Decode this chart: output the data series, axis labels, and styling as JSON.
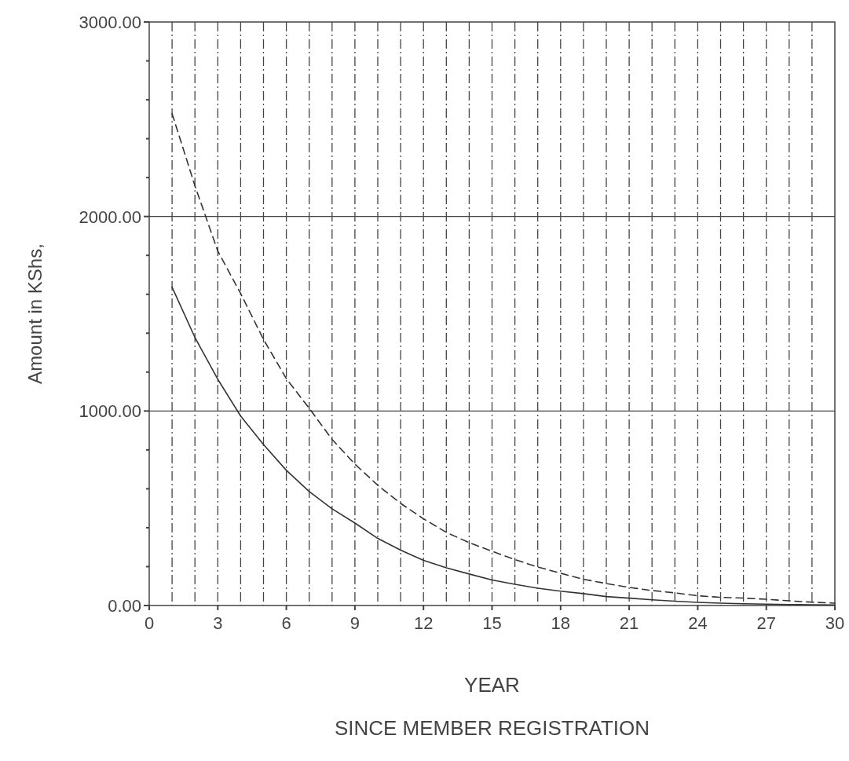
{
  "chart_data": {
    "type": "line",
    "xlabel": "YEAR",
    "ylabel": "Amount in KShs,",
    "annotations": [
      "SINCE MEMBER REGISTRATION"
    ],
    "x": [
      1,
      2,
      3,
      4,
      5,
      6,
      7,
      8,
      9,
      10,
      11,
      12,
      13,
      14,
      15,
      16,
      17,
      18,
      19,
      20,
      21,
      22,
      23,
      24,
      25,
      26,
      27,
      28,
      29,
      30
    ],
    "series": [
      {
        "color": "#333333",
        "line_style": "solid",
        "values": [
          1637,
          1378,
          1163,
          974,
          828,
          695,
          586,
          497,
          424,
          345,
          285,
          232,
          194,
          162,
          131,
          109,
          89,
          74,
          61,
          46,
          38,
          29,
          22,
          16,
          12,
          9,
          7,
          5,
          4,
          3
        ]
      },
      {
        "color": "#333333",
        "line_style": "dashed",
        "values": [
          2529,
          2158,
          1822,
          1604,
          1368,
          1166,
          1014,
          854,
          727,
          618,
          525,
          446,
          376,
          323,
          279,
          236,
          198,
          166,
          135,
          113,
          93,
          77,
          65,
          50,
          42,
          38,
          32,
          24,
          17,
          12
        ]
      }
    ],
    "xlim": [
      0,
      30
    ],
    "xticks": [
      0,
      {
        "value": 1,
        "label": null
      },
      {
        "value": 2,
        "label": null
      },
      3,
      {
        "value": 4,
        "label": null
      },
      {
        "value": 5,
        "label": null
      },
      6,
      {
        "value": 7,
        "label": null
      },
      {
        "value": 8,
        "label": null
      },
      9,
      {
        "value": 10,
        "label": null
      },
      {
        "value": 11,
        "label": null
      },
      12,
      {
        "value": 13,
        "label": null
      },
      {
        "value": 14,
        "label": null
      },
      15,
      {
        "value": 16,
        "label": null
      },
      {
        "value": 17,
        "label": null
      },
      18,
      {
        "value": 19,
        "label": null
      },
      {
        "value": 20,
        "label": null
      },
      21,
      {
        "value": 22,
        "label": null
      },
      {
        "value": 23,
        "label": null
      },
      24,
      {
        "value": 25,
        "label": null
      },
      {
        "value": 26,
        "label": null
      },
      27,
      {
        "value": 28,
        "label": null
      },
      {
        "value": 29,
        "label": null
      },
      30
    ],
    "ylim": [
      0,
      3000
    ],
    "yticks": [
      {
        "value": 0,
        "label": "0.00"
      },
      {
        "value": 200,
        "label": null
      },
      {
        "value": 400,
        "label": null
      },
      {
        "value": 600,
        "label": null
      },
      {
        "value": 800,
        "label": null
      },
      {
        "value": 1000,
        "label": "1000.00"
      },
      {
        "value": 1200,
        "label": null
      },
      {
        "value": 1400,
        "label": null
      },
      {
        "value": 1600,
        "label": null
      },
      {
        "value": 1800,
        "label": null
      },
      {
        "value": 2000,
        "label": "2000.00"
      },
      {
        "value": 2200,
        "label": null
      },
      {
        "value": 2400,
        "label": null
      },
      {
        "value": 2600,
        "label": null
      },
      {
        "value": 2800,
        "label": null
      },
      {
        "value": 3000,
        "label": "3000.00"
      }
    ],
    "grid": true,
    "marker": "none"
  }
}
